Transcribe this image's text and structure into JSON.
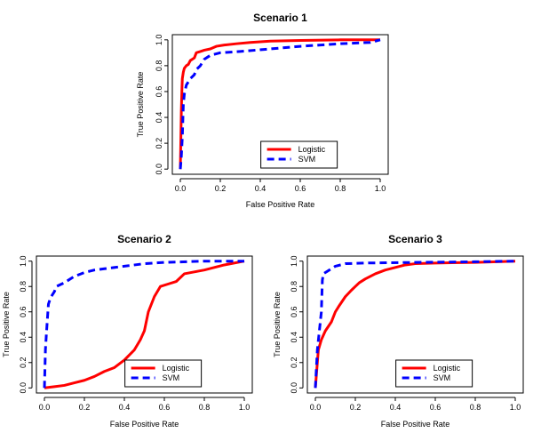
{
  "chart_data": [
    {
      "type": "line",
      "title": "Scenario 1",
      "xlabel": "False Positive Rate",
      "ylabel": "True Positive Rate",
      "xlim": [
        0,
        1
      ],
      "ylim": [
        0,
        1
      ],
      "x_ticks": [
        0.0,
        0.2,
        0.4,
        0.6,
        0.8,
        1.0
      ],
      "x_tick_labels": [
        "0.0",
        "0.2",
        "0.4",
        "0.6",
        "0.8",
        "1.0"
      ],
      "y_ticks": [
        0.0,
        0.2,
        0.4,
        0.6,
        0.8,
        1.0
      ],
      "y_tick_labels": [
        "0.0",
        "0.2",
        "0.4",
        "0.6",
        "0.8",
        "1.0"
      ],
      "legend_position": "bottom-right",
      "series": [
        {
          "name": "Logistic",
          "color": "#ff0000",
          "dash": "solid",
          "points": [
            [
              0,
              0
            ],
            [
              0.005,
              0.45
            ],
            [
              0.008,
              0.62
            ],
            [
              0.01,
              0.7
            ],
            [
              0.015,
              0.75
            ],
            [
              0.02,
              0.78
            ],
            [
              0.03,
              0.8
            ],
            [
              0.04,
              0.81
            ],
            [
              0.05,
              0.84
            ],
            [
              0.06,
              0.85
            ],
            [
              0.07,
              0.86
            ],
            [
              0.08,
              0.9
            ],
            [
              0.1,
              0.91
            ],
            [
              0.12,
              0.92
            ],
            [
              0.15,
              0.93
            ],
            [
              0.18,
              0.95
            ],
            [
              0.22,
              0.96
            ],
            [
              0.28,
              0.97
            ],
            [
              0.35,
              0.98
            ],
            [
              0.45,
              0.99
            ],
            [
              0.6,
              0.995
            ],
            [
              0.8,
              1
            ],
            [
              1,
              1
            ]
          ]
        },
        {
          "name": "SVM",
          "color": "#0000ff",
          "dash": "dashed",
          "points": [
            [
              0,
              0
            ],
            [
              0.005,
              0.1
            ],
            [
              0.01,
              0.25
            ],
            [
              0.015,
              0.5
            ],
            [
              0.02,
              0.58
            ],
            [
              0.03,
              0.65
            ],
            [
              0.05,
              0.7
            ],
            [
              0.07,
              0.73
            ],
            [
              0.08,
              0.77
            ],
            [
              0.1,
              0.8
            ],
            [
              0.12,
              0.85
            ],
            [
              0.15,
              0.88
            ],
            [
              0.2,
              0.9
            ],
            [
              0.3,
              0.91
            ],
            [
              0.45,
              0.93
            ],
            [
              0.6,
              0.95
            ],
            [
              0.8,
              0.97
            ],
            [
              0.95,
              0.98
            ],
            [
              1,
              1
            ]
          ]
        }
      ]
    },
    {
      "type": "line",
      "title": "Scenario 2",
      "xlabel": "False Positive Rate",
      "ylabel": "True Positive Rate",
      "xlim": [
        0,
        1
      ],
      "ylim": [
        0,
        1
      ],
      "x_ticks": [
        0.0,
        0.2,
        0.4,
        0.6,
        0.8,
        1.0
      ],
      "x_tick_labels": [
        "0.0",
        "0.2",
        "0.4",
        "0.6",
        "0.8",
        "1.0"
      ],
      "y_ticks": [
        0.0,
        0.2,
        0.4,
        0.6,
        0.8,
        1.0
      ],
      "y_tick_labels": [
        "0.0",
        "0.2",
        "0.4",
        "0.6",
        "0.8",
        "1.0"
      ],
      "legend_position": "bottom-right",
      "series": [
        {
          "name": "Logistic",
          "color": "#ff0000",
          "dash": "solid",
          "points": [
            [
              0,
              0
            ],
            [
              0.05,
              0.01
            ],
            [
              0.1,
              0.02
            ],
            [
              0.15,
              0.04
            ],
            [
              0.2,
              0.06
            ],
            [
              0.25,
              0.09
            ],
            [
              0.3,
              0.13
            ],
            [
              0.35,
              0.16
            ],
            [
              0.4,
              0.22
            ],
            [
              0.45,
              0.3
            ],
            [
              0.48,
              0.38
            ],
            [
              0.5,
              0.45
            ],
            [
              0.52,
              0.6
            ],
            [
              0.55,
              0.72
            ],
            [
              0.58,
              0.8
            ],
            [
              0.62,
              0.82
            ],
            [
              0.66,
              0.84
            ],
            [
              0.7,
              0.9
            ],
            [
              0.8,
              0.93
            ],
            [
              0.9,
              0.97
            ],
            [
              1,
              1
            ]
          ]
        },
        {
          "name": "SVM",
          "color": "#0000ff",
          "dash": "dashed",
          "points": [
            [
              0,
              0
            ],
            [
              0.005,
              0.3
            ],
            [
              0.01,
              0.43
            ],
            [
              0.02,
              0.66
            ],
            [
              0.03,
              0.71
            ],
            [
              0.05,
              0.76
            ],
            [
              0.06,
              0.8
            ],
            [
              0.1,
              0.83
            ],
            [
              0.15,
              0.88
            ],
            [
              0.2,
              0.91
            ],
            [
              0.25,
              0.93
            ],
            [
              0.3,
              0.94
            ],
            [
              0.4,
              0.96
            ],
            [
              0.5,
              0.98
            ],
            [
              0.6,
              0.99
            ],
            [
              0.8,
              1
            ],
            [
              1,
              1
            ]
          ]
        }
      ]
    },
    {
      "type": "line",
      "title": "Scenario 3",
      "xlabel": "False Positive Rate",
      "ylabel": "True Positive Rate",
      "xlim": [
        0,
        1
      ],
      "ylim": [
        0,
        1
      ],
      "x_ticks": [
        0.0,
        0.2,
        0.4,
        0.6,
        0.8,
        1.0
      ],
      "x_tick_labels": [
        "0.0",
        "0.2",
        "0.4",
        "0.6",
        "0.8",
        "1.0"
      ],
      "y_ticks": [
        0.0,
        0.2,
        0.4,
        0.6,
        0.8,
        1.0
      ],
      "y_tick_labels": [
        "0.0",
        "0.2",
        "0.4",
        "0.6",
        "0.8",
        "1.0"
      ],
      "legend_position": "bottom-right",
      "series": [
        {
          "name": "Logistic",
          "color": "#ff0000",
          "dash": "solid",
          "points": [
            [
              0,
              0
            ],
            [
              0.005,
              0.1
            ],
            [
              0.01,
              0.2
            ],
            [
              0.015,
              0.3
            ],
            [
              0.03,
              0.38
            ],
            [
              0.05,
              0.45
            ],
            [
              0.08,
              0.52
            ],
            [
              0.1,
              0.6
            ],
            [
              0.12,
              0.65
            ],
            [
              0.15,
              0.72
            ],
            [
              0.18,
              0.77
            ],
            [
              0.2,
              0.8
            ],
            [
              0.22,
              0.83
            ],
            [
              0.25,
              0.86
            ],
            [
              0.3,
              0.9
            ],
            [
              0.35,
              0.93
            ],
            [
              0.4,
              0.95
            ],
            [
              0.45,
              0.97
            ],
            [
              0.5,
              0.98
            ],
            [
              0.6,
              0.985
            ],
            [
              0.8,
              0.99
            ],
            [
              1,
              1
            ]
          ]
        },
        {
          "name": "SVM",
          "color": "#0000ff",
          "dash": "dashed",
          "points": [
            [
              0,
              0
            ],
            [
              0.005,
              0.15
            ],
            [
              0.01,
              0.3
            ],
            [
              0.02,
              0.45
            ],
            [
              0.03,
              0.6
            ],
            [
              0.035,
              0.85
            ],
            [
              0.04,
              0.9
            ],
            [
              0.06,
              0.92
            ],
            [
              0.1,
              0.96
            ],
            [
              0.15,
              0.98
            ],
            [
              0.25,
              0.985
            ],
            [
              0.5,
              0.99
            ],
            [
              0.8,
              0.995
            ],
            [
              1,
              1
            ]
          ]
        }
      ]
    }
  ]
}
